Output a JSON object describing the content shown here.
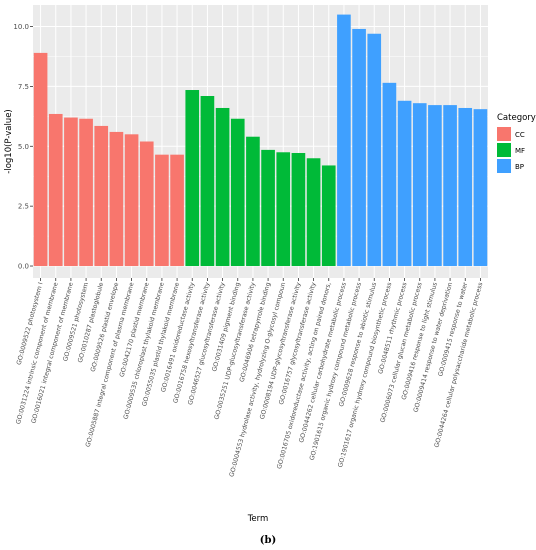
{
  "chart_data": {
    "type": "bar",
    "xlabel": "Term",
    "ylabel": "-log10(P-value)",
    "ylim": [
      -0.5,
      10.9
    ],
    "yticks": [
      "0.0",
      "2.5",
      "5.0",
      "7.5",
      "10.0"
    ],
    "ytick_values": [
      0,
      2.5,
      5,
      7.5,
      10
    ],
    "grid": true,
    "legend": {
      "title": "Category",
      "placement": "right",
      "entries": [
        {
          "label": "CC",
          "color": "#F8766D"
        },
        {
          "label": "MF",
          "color": "#00BA38"
        },
        {
          "label": "BP",
          "color": "#3FA0FF"
        }
      ]
    },
    "categories": [
      "GO:0009522 photosystem I",
      "GO:0031224 intrinsic component of membrane",
      "GO:0016021 integral component of membrane",
      "GO:0009521 photosystem",
      "GO:0010287 plastoglobule",
      "GO:0009526 plastid envelope",
      "GO:0005887 integral component of plasma membrane",
      "GO:0042170 plastid membrane",
      "GO:0009535 chloroplast thylakoid membrane",
      "GO:0055035 plastid thylakoid membrane",
      "GO:0016491 oxidoreductase activity",
      "GO:0016758 hexosyltransferase activity",
      "GO:0046527 glucosyltransferase activity",
      "GO:0031409 pigment binding",
      "GO:0035251 UDP-glucosyltransferase activity",
      "GO:0046906 tetrapyrrole binding",
      "GO:0004553 hydrolase activity, hydrolyzing O-glycosyl compoun",
      "GO:0008194 UDP-glycosyltransferase activity",
      "GO:0016757 glycosyltransferase activity",
      "GO:0016705 oxidoreductase activity, acting on paired donors,",
      "GO:0044262 cellular carbohydrate metabolic process",
      "GO:1901615 organic hydroxy compound metabolic process",
      "GO:0009628 response to abiotic stimulus",
      "GO:1901617 organic hydroxy compound biosynthetic process",
      "GO:0048511 rhythmic process",
      "GO:0006073 cellular glucan metabolic process",
      "GO:0009416 response to light stimulus",
      "GO:0009414 response to water deprivation",
      "GO:0009415 response to water",
      "GO:0044264 cellular polysaccharide metabolic process"
    ],
    "values": [
      8.9,
      6.35,
      6.2,
      6.15,
      5.85,
      5.6,
      5.5,
      5.2,
      4.65,
      4.65,
      7.35,
      7.1,
      6.6,
      6.15,
      5.4,
      4.85,
      4.75,
      4.72,
      4.5,
      4.2,
      10.5,
      9.9,
      9.7,
      7.65,
      6.9,
      6.8,
      6.72,
      6.72,
      6.6,
      6.55
    ],
    "groups": [
      "CC",
      "CC",
      "CC",
      "CC",
      "CC",
      "CC",
      "CC",
      "CC",
      "CC",
      "CC",
      "MF",
      "MF",
      "MF",
      "MF",
      "MF",
      "MF",
      "MF",
      "MF",
      "MF",
      "MF",
      "BP",
      "BP",
      "BP",
      "BP",
      "BP",
      "BP",
      "BP",
      "BP",
      "BP",
      "BP"
    ]
  },
  "caption": "(b)"
}
